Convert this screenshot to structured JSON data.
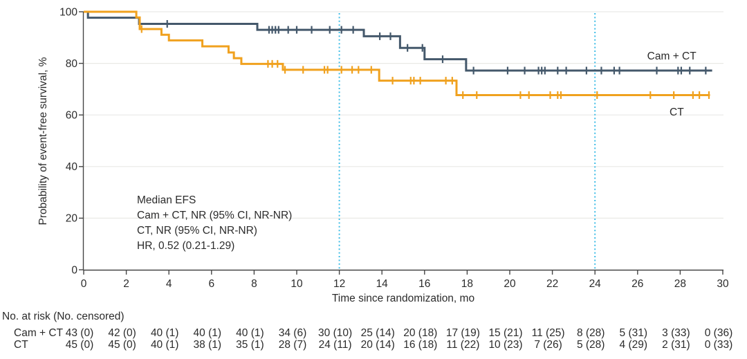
{
  "chart_data": {
    "type": "line",
    "subtype": "kaplan-meier-step-curve",
    "title": "",
    "xlabel": "Time since randomization, mo",
    "ylabel": "Probability of event-free survival, %",
    "xlim": [
      0,
      30
    ],
    "ylim": [
      0,
      100
    ],
    "x_ticks": [
      0,
      2,
      4,
      6,
      8,
      10,
      12,
      14,
      16,
      18,
      20,
      22,
      24,
      26,
      28,
      30
    ],
    "y_ticks": [
      0,
      20,
      40,
      60,
      80,
      100
    ],
    "grid_y": [
      20,
      40,
      60,
      80,
      100
    ],
    "grid_color": "#e9e9e6",
    "axis_color": "#454545",
    "text_color": "#2b2b2b",
    "legend_position": "inline-right",
    "vlines": {
      "x": [
        12,
        24
      ],
      "color": "#3fbde6",
      "style": "dotted"
    },
    "series": [
      {
        "name": "Cam + CT",
        "color": "#44586b",
        "steps": [
          [
            0,
            100
          ],
          [
            0.2,
            97.7
          ],
          [
            2.6,
            95.3
          ],
          [
            8.15,
            93.0
          ],
          [
            13.15,
            90.5
          ],
          [
            14.85,
            86.0
          ],
          [
            16.0,
            81.6
          ],
          [
            17.95,
            77.2
          ],
          [
            29.5,
            77.2
          ]
        ],
        "censors": [
          [
            3.92,
            95.3
          ],
          [
            8.7,
            93.0
          ],
          [
            8.85,
            93.0
          ],
          [
            9.0,
            93.0
          ],
          [
            9.15,
            93.0
          ],
          [
            9.6,
            93.0
          ],
          [
            10.0,
            93.0
          ],
          [
            10.7,
            93.0
          ],
          [
            11.55,
            93.0
          ],
          [
            12.1,
            93.0
          ],
          [
            12.65,
            93.0
          ],
          [
            13.9,
            90.5
          ],
          [
            14.4,
            90.5
          ],
          [
            15.2,
            86.0
          ],
          [
            15.9,
            86.0
          ],
          [
            16.85,
            81.6
          ],
          [
            18.3,
            77.2
          ],
          [
            19.9,
            77.2
          ],
          [
            20.7,
            77.2
          ],
          [
            21.35,
            77.2
          ],
          [
            21.5,
            77.2
          ],
          [
            21.65,
            77.2
          ],
          [
            22.25,
            77.2
          ],
          [
            22.65,
            77.2
          ],
          [
            23.6,
            77.2
          ],
          [
            24.3,
            77.2
          ],
          [
            24.9,
            77.2
          ],
          [
            25.15,
            77.2
          ],
          [
            26.9,
            77.2
          ],
          [
            27.9,
            77.2
          ],
          [
            28.05,
            77.2
          ],
          [
            28.45,
            77.2
          ],
          [
            29.2,
            77.2
          ]
        ],
        "label": {
          "text": "Cam + CT",
          "x": 26.45,
          "y": 81.5
        }
      },
      {
        "name": "CT",
        "color": "#f0a11e",
        "steps": [
          [
            0,
            100
          ],
          [
            2.47,
            97.8
          ],
          [
            2.63,
            93.3
          ],
          [
            3.65,
            91.1
          ],
          [
            4.0,
            88.9
          ],
          [
            5.57,
            86.6
          ],
          [
            6.8,
            84.2
          ],
          [
            7.05,
            82.0
          ],
          [
            7.4,
            79.8
          ],
          [
            9.35,
            77.5
          ],
          [
            13.87,
            73.3
          ],
          [
            17.5,
            67.7
          ],
          [
            29.4,
            67.7
          ]
        ],
        "censors": [
          [
            2.72,
            93.3
          ],
          [
            8.65,
            79.8
          ],
          [
            8.85,
            79.8
          ],
          [
            9.1,
            79.8
          ],
          [
            9.45,
            77.5
          ],
          [
            10.3,
            77.5
          ],
          [
            11.3,
            77.5
          ],
          [
            11.45,
            77.5
          ],
          [
            12.1,
            77.5
          ],
          [
            12.6,
            77.5
          ],
          [
            12.9,
            77.5
          ],
          [
            13.5,
            77.5
          ],
          [
            14.5,
            73.3
          ],
          [
            15.35,
            73.3
          ],
          [
            15.5,
            73.3
          ],
          [
            15.8,
            73.3
          ],
          [
            17.0,
            73.3
          ],
          [
            17.3,
            73.3
          ],
          [
            17.8,
            67.7
          ],
          [
            18.45,
            67.7
          ],
          [
            20.5,
            67.7
          ],
          [
            20.9,
            67.7
          ],
          [
            21.9,
            67.7
          ],
          [
            22.25,
            67.7
          ],
          [
            22.4,
            67.7
          ],
          [
            24.1,
            67.7
          ],
          [
            26.6,
            67.7
          ],
          [
            27.7,
            67.7
          ],
          [
            28.6,
            67.7
          ],
          [
            28.9,
            67.7
          ],
          [
            29.35,
            67.7
          ]
        ],
        "label": {
          "text": "CT",
          "x": 27.5,
          "y": 59.8
        }
      }
    ],
    "annotation": {
      "lines": [
        "Median EFS",
        "Cam + CT, NR (95% CI, NR-NR)",
        "CT, NR (95% CI, NR-NR)",
        "HR, 0.52 (0.21-1.29)"
      ]
    }
  },
  "risk_table": {
    "header": "No. at risk (No. censored)",
    "times": [
      0,
      2,
      4,
      6,
      8,
      10,
      12,
      14,
      16,
      18,
      20,
      22,
      24,
      26,
      28,
      30
    ],
    "rows": [
      {
        "label": "Cam + CT",
        "values": [
          "43 (0)",
          "42 (0)",
          "40 (1)",
          "40 (1)",
          "40 (1)",
          "34 (6)",
          "30 (10)",
          "25 (14)",
          "20 (18)",
          "17 (19)",
          "15 (21)",
          "11 (25)",
          "8 (28)",
          "5 (31)",
          "3 (33)",
          "0 (36)"
        ]
      },
      {
        "label": "CT",
        "values": [
          "45 (0)",
          "45 (0)",
          "40 (1)",
          "38 (1)",
          "35 (1)",
          "28 (7)",
          "24 (11)",
          "20 (14)",
          "16 (18)",
          "11 (22)",
          "10 (23)",
          "7 (26)",
          "5 (28)",
          "4 (29)",
          "2 (31)",
          "0 (33)"
        ]
      }
    ]
  }
}
